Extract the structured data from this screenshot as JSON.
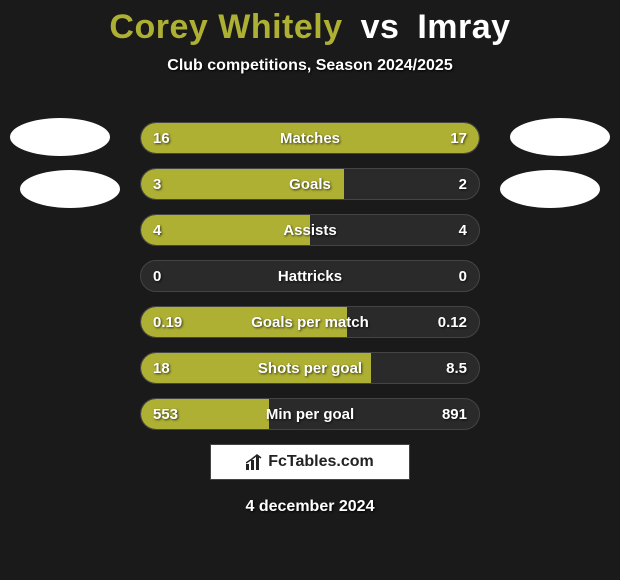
{
  "colors": {
    "background": "#1a1a1a",
    "accent": "#aeb034",
    "text": "#ffffff",
    "row_bg": "#2a2a2a",
    "row_border": "#444444",
    "logo_bg": "#ffffff"
  },
  "title": {
    "player1": "Corey Whitely",
    "vs": "vs",
    "player2": "Imray",
    "fontsize": 34
  },
  "subtitle": "Club competitions, Season 2024/2025",
  "avatars": {
    "left_top_color": "#ffffff",
    "left_bot_color": "#ffffff",
    "right_top_color": "#ffffff",
    "right_bot_color": "#ffffff"
  },
  "rows": [
    {
      "label": "Matches",
      "left": "16",
      "right": "17",
      "left_pct": 48,
      "right_pct": 52
    },
    {
      "label": "Goals",
      "left": "3",
      "right": "2",
      "left_pct": 60,
      "right_pct": 0
    },
    {
      "label": "Assists",
      "left": "4",
      "right": "4",
      "left_pct": 50,
      "right_pct": 0
    },
    {
      "label": "Hattricks",
      "left": "0",
      "right": "0",
      "left_pct": 0,
      "right_pct": 0
    },
    {
      "label": "Goals per match",
      "left": "0.19",
      "right": "0.12",
      "left_pct": 61,
      "right_pct": 0
    },
    {
      "label": "Shots per goal",
      "left": "18",
      "right": "8.5",
      "left_pct": 68,
      "right_pct": 0
    },
    {
      "label": "Min per goal",
      "left": "553",
      "right": "891",
      "left_pct": 38,
      "right_pct": 0
    }
  ],
  "row_style": {
    "height": 32,
    "gap": 14,
    "radius": 16,
    "fontsize": 15,
    "fill_color": "#aeb034"
  },
  "logo": {
    "icon": "bar-chart-icon",
    "text": "FcTables.com"
  },
  "date": "4 december 2024"
}
